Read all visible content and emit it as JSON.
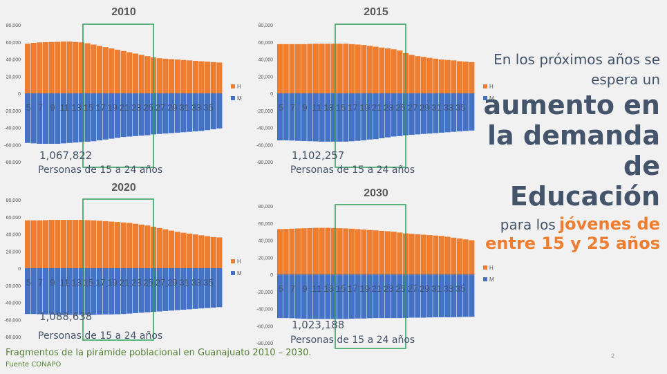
{
  "slide": {
    "intro_line1": "En los próximos años se",
    "intro_line2": "espera un",
    "big1": "aumento en",
    "big2": "la demanda",
    "big3": "de",
    "big4": "Educación",
    "para_prefix": "para los",
    "para_highlight": "jóvenes de",
    "para_line2": "entre 15 y 25 años",
    "caption": "Fragmentos de la pirámide poblacional en Guanajuato 2010 – 2030.",
    "source": "Fuente CONAPO",
    "page_number": "2",
    "colors": {
      "h": "#ed7d31",
      "m": "#4472c4",
      "box": "#2e9e5b",
      "title": "#595959",
      "text": "#44546a"
    }
  },
  "chart_data": [
    {
      "type": "bar",
      "title": "2010",
      "series": [
        {
          "name": "H",
          "values": [
            58000,
            59000,
            59500,
            59800,
            60000,
            60200,
            60500,
            60500,
            60000,
            59500,
            58500,
            57000,
            55500,
            54000,
            52500,
            51000,
            49500,
            48000,
            46500,
            45000,
            43500,
            42000,
            41000,
            40500,
            40000,
            39500,
            39000,
            38500,
            38000,
            37500,
            37000,
            36500,
            36000
          ]
        },
        {
          "name": "M",
          "values": [
            -58000,
            -58500,
            -59000,
            -59000,
            -59000,
            -59000,
            -58500,
            -58000,
            -57500,
            -57000,
            -56500,
            -56000,
            -55000,
            -54000,
            -53000,
            -52000,
            -51000,
            -50500,
            -50000,
            -49500,
            -49000,
            -48000,
            -47500,
            -47000,
            -46500,
            -46000,
            -45500,
            -45000,
            -44500,
            -44000,
            -43000,
            -42000,
            -41000
          ]
        }
      ],
      "tick_labels": [
        "5",
        "7",
        "9",
        "11",
        "13",
        "15",
        "17",
        "19",
        "21",
        "23",
        "25",
        "27",
        "29",
        "31",
        "33",
        "35"
      ],
      "y_ticks": [
        "80,000",
        "60,000",
        "40,000",
        "20,000",
        "0",
        "-20,000",
        "-40,000",
        "-60,000",
        "-80,000"
      ],
      "ylim": [
        -80000,
        80000
      ],
      "total": "1,067,822",
      "total_label": "Personas de 15 a 24 años"
    },
    {
      "type": "bar",
      "title": "2015",
      "series": [
        {
          "name": "H",
          "values": [
            57500,
            57500,
            57500,
            57500,
            57500,
            57800,
            58000,
            58000,
            58000,
            58000,
            58000,
            58000,
            57500,
            57000,
            56500,
            55500,
            54500,
            53500,
            52500,
            51500,
            50000,
            47000,
            45000,
            43500,
            42500,
            41500,
            40500,
            39500,
            39000,
            38500,
            37500,
            37000,
            36500
          ]
        },
        {
          "name": "M",
          "values": [
            -55000,
            -55000,
            -55200,
            -55500,
            -55800,
            -56000,
            -56200,
            -56500,
            -56500,
            -56500,
            -56500,
            -56500,
            -56000,
            -55500,
            -55000,
            -54000,
            -53500,
            -52500,
            -51500,
            -50500,
            -50000,
            -49000,
            -48500,
            -48000,
            -47500,
            -47000,
            -46500,
            -46000,
            -45500,
            -45000,
            -44500,
            -44000,
            -43500
          ]
        }
      ],
      "tick_labels": [
        "5",
        "7",
        "9",
        "11",
        "13",
        "15",
        "17",
        "19",
        "21",
        "23",
        "25",
        "27",
        "29",
        "31",
        "33",
        "35"
      ],
      "y_ticks": [
        "80,000",
        "60,000",
        "40,000",
        "20,000",
        "0",
        "-20,000",
        "-40,000",
        "-60,000",
        "-80,000"
      ],
      "ylim": [
        -80000,
        80000
      ],
      "total": "1,102,257",
      "total_label": "Personas de 15 a 24 años"
    },
    {
      "type": "bar",
      "title": "2020",
      "series": [
        {
          "name": "H",
          "values": [
            56000,
            56000,
            56000,
            56200,
            56500,
            56500,
            56500,
            56500,
            56500,
            56500,
            56200,
            56000,
            55500,
            55000,
            54500,
            54000,
            53500,
            53000,
            52000,
            51000,
            50000,
            48500,
            47000,
            45500,
            44000,
            42500,
            41500,
            40500,
            39500,
            38500,
            37500,
            36500,
            36000
          ]
        },
        {
          "name": "M",
          "values": [
            -53500,
            -53500,
            -53800,
            -54000,
            -54200,
            -54500,
            -54500,
            -54500,
            -54500,
            -54500,
            -54500,
            -54500,
            -54200,
            -54000,
            -54000,
            -53800,
            -53500,
            -53000,
            -52500,
            -52000,
            -51500,
            -51000,
            -50500,
            -50000,
            -49500,
            -49000,
            -48500,
            -48000,
            -47500,
            -47000,
            -46500,
            -46000,
            -45500
          ]
        }
      ],
      "tick_labels": [
        "5",
        "7",
        "9",
        "11",
        "13",
        "15",
        "17",
        "19",
        "21",
        "23",
        "25",
        "27",
        "29",
        "31",
        "33",
        "35"
      ],
      "y_ticks": [
        "80,000",
        "60,000",
        "40,000",
        "20,000",
        "0",
        "-20,000",
        "-40,000",
        "-60,000",
        "-80,000"
      ],
      "ylim": [
        -80000,
        80000
      ],
      "total": "1,088,638",
      "total_label": "Personas de 15 a 24 años"
    },
    {
      "type": "bar",
      "title": "2030",
      "series": [
        {
          "name": "H",
          "values": [
            53000,
            53200,
            53500,
            53800,
            54000,
            54200,
            54500,
            54500,
            54500,
            54300,
            54000,
            53800,
            53500,
            53000,
            52500,
            52000,
            51500,
            51000,
            50500,
            50000,
            49000,
            48000,
            47500,
            47000,
            46500,
            46000,
            45500,
            45000,
            44000,
            43000,
            42000,
            41000,
            40000
          ]
        },
        {
          "name": "M",
          "values": [
            -51000,
            -51000,
            -51200,
            -51500,
            -51800,
            -52000,
            -52000,
            -52000,
            -52000,
            -52000,
            -52000,
            -52000,
            -51800,
            -51500,
            -51500,
            -51200,
            -51000,
            -51000,
            -51000,
            -51000,
            -51000,
            -50800,
            -50500,
            -50500,
            -50500,
            -50200,
            -50000,
            -50000,
            -50000,
            -50000,
            -49800,
            -49500,
            -49500
          ]
        }
      ],
      "tick_labels": [
        "5",
        "7",
        "9",
        "11",
        "13",
        "15",
        "17",
        "19",
        "21",
        "23",
        "25",
        "27",
        "29",
        "31",
        "33",
        "35"
      ],
      "y_ticks": [
        "80,000",
        "60,000",
        "40,000",
        "20,000",
        "0",
        "-20,000",
        "-40,000",
        "-60,000",
        "-80,000"
      ],
      "ylim": [
        -80000,
        80000
      ],
      "total": "1,023,188",
      "total_label": "Personas de 15 a 24 años"
    }
  ]
}
